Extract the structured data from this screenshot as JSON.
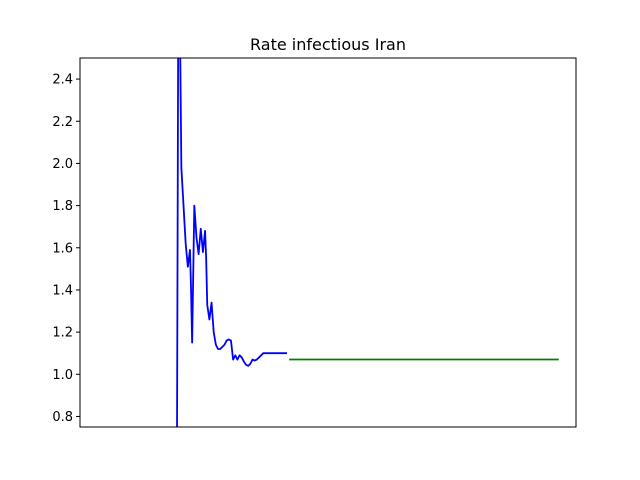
{
  "chart_data": {
    "type": "line",
    "title": "Rate infectious Iran",
    "xlabel": "",
    "ylabel": "",
    "xlim": [
      0,
      230
    ],
    "ylim": [
      0.75,
      2.5
    ],
    "x_ticks_visible": false,
    "grid": false,
    "legend": "none",
    "yticks": [
      0.8,
      1.0,
      1.2,
      1.4,
      1.6,
      1.8,
      2.0,
      2.2,
      2.4
    ],
    "ytick_labels": [
      "0.8",
      "1.0",
      "1.2",
      "1.4",
      "1.6",
      "1.8",
      "2.0",
      "2.2",
      "2.4"
    ],
    "series": [
      {
        "color": "#0000ff",
        "x": [
          45,
          45.5,
          46,
          46.5,
          47,
          48,
          49,
          50,
          51,
          51.5,
          52,
          53,
          54,
          55,
          56,
          57,
          58,
          58.5,
          59,
          60,
          61,
          62,
          63,
          64,
          64.5,
          65,
          66,
          67,
          68,
          69,
          70,
          71,
          72,
          73,
          74,
          75,
          76,
          77,
          78,
          79,
          80,
          81,
          82,
          83,
          84,
          85,
          86,
          87,
          88,
          89,
          90,
          91,
          92,
          93,
          94,
          95,
          96
        ],
        "y": [
          0.75,
          2.5,
          2.5,
          2.5,
          1.98,
          1.8,
          1.62,
          1.51,
          1.59,
          1.4,
          1.15,
          1.8,
          1.65,
          1.57,
          1.69,
          1.58,
          1.68,
          1.55,
          1.33,
          1.26,
          1.34,
          1.2,
          1.14,
          1.12,
          1.12,
          1.12,
          1.13,
          1.14,
          1.16,
          1.165,
          1.16,
          1.07,
          1.09,
          1.07,
          1.09,
          1.08,
          1.06,
          1.045,
          1.04,
          1.05,
          1.07,
          1.065,
          1.07,
          1.08,
          1.09,
          1.1,
          1.1,
          1.1,
          1.1,
          1.1,
          1.1,
          1.1,
          1.1,
          1.1,
          1.1,
          1.1,
          1.1
        ]
      },
      {
        "color": "#008000",
        "x": [
          97,
          222
        ],
        "y": [
          1.07,
          1.07
        ]
      }
    ]
  }
}
